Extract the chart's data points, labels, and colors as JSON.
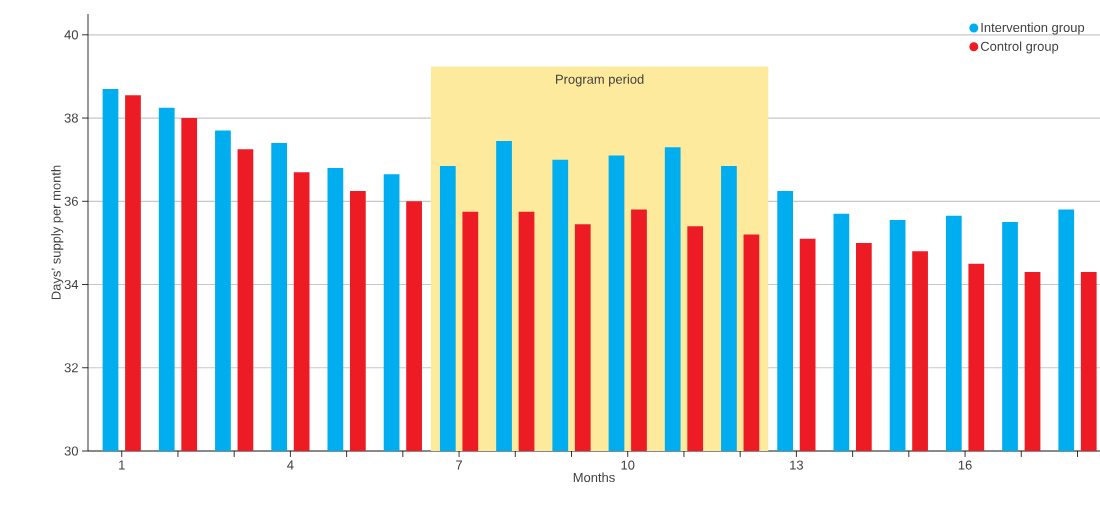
{
  "chart_data": {
    "type": "bar",
    "xlabel": "Months",
    "ylabel": "Days’ supply per month",
    "x": [
      1,
      2,
      3,
      4,
      5,
      6,
      7,
      8,
      9,
      10,
      11,
      12,
      13,
      14,
      15,
      16,
      17,
      18
    ],
    "series": [
      {
        "name": "Intervention group",
        "color": "#00adef",
        "values": [
          38.7,
          38.25,
          37.7,
          37.4,
          36.8,
          36.65,
          36.85,
          37.45,
          37.0,
          37.1,
          37.3,
          36.85,
          36.25,
          35.7,
          35.55,
          35.65,
          35.5,
          35.8
        ]
      },
      {
        "name": "Control group",
        "color": "#ed1c24",
        "values": [
          38.55,
          38.0,
          37.25,
          36.7,
          36.25,
          36.0,
          35.75,
          35.75,
          35.45,
          35.8,
          35.4,
          35.2,
          35.1,
          35.0,
          34.8,
          34.5,
          34.3,
          34.3
        ]
      }
    ],
    "xlim": [
      0.4,
      18.4
    ],
    "xticks": [
      1,
      {
        "value": 2,
        "label": null
      },
      {
        "value": 3,
        "label": null
      },
      4,
      {
        "value": 5,
        "label": null
      },
      {
        "value": 6,
        "label": null
      },
      7,
      {
        "value": 8,
        "label": null
      },
      {
        "value": 9,
        "label": null
      },
      10,
      {
        "value": 11,
        "label": null
      },
      {
        "value": 12,
        "label": null
      },
      13,
      {
        "value": 14,
        "label": null
      },
      {
        "value": 15,
        "label": null
      },
      16,
      {
        "value": 17,
        "label": null
      },
      {
        "value": 18,
        "label": null
      }
    ],
    "ylim": [
      30,
      40.5
    ],
    "yticks": [
      30,
      32,
      34,
      36,
      38,
      40
    ],
    "bands": [
      {
        "axis": "x",
        "from": 6.5,
        "to": 12.5,
        "label": "Program period",
        "color": "#feea9c"
      }
    ],
    "grid": "y",
    "legend": "top right"
  }
}
